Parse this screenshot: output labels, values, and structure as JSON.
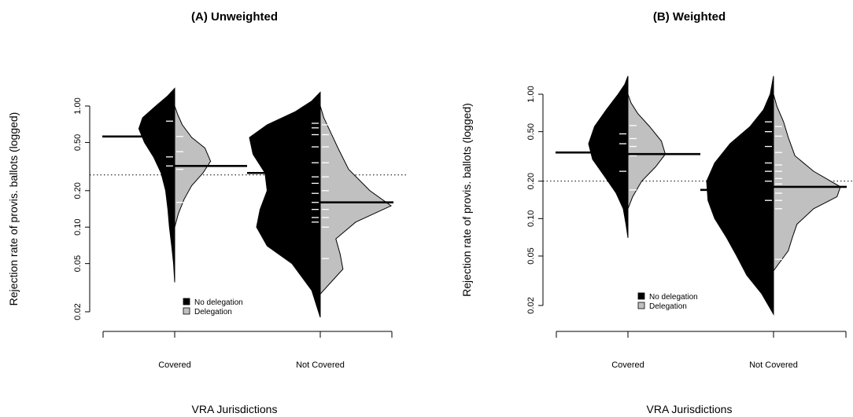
{
  "chart_data": [
    {
      "type": "beanplot",
      "title": "(A) Unweighted",
      "xlabel": "VRA Jurisdictions",
      "ylabel": "Rejection rate of provis. ballots (logged)",
      "y_scale": "log",
      "ylim": [
        0.02,
        1.0
      ],
      "yticks": [
        0.02,
        0.05,
        0.1,
        0.2,
        0.5,
        1.0
      ],
      "ytick_labels": [
        "0.02",
        "0.05",
        "0.10",
        "0.20",
        "0.50",
        "1.00"
      ],
      "categories": [
        "Covered",
        "Not Covered"
      ],
      "overall_line": 0.27,
      "series": [
        {
          "name": "No delegation",
          "color": "#000000",
          "side": "left",
          "groups": [
            {
              "category": "Covered",
              "mean": 0.56,
              "range": [
                0.035,
                1.4
              ],
              "density": [
                [
                  0.035,
                  0.0
                ],
                [
                  0.05,
                  0.03
                ],
                [
                  0.07,
                  0.08
                ],
                [
                  0.1,
                  0.14
                ],
                [
                  0.14,
                  0.18
                ],
                [
                  0.2,
                  0.24
                ],
                [
                  0.28,
                  0.36
                ],
                [
                  0.38,
                  0.56
                ],
                [
                  0.5,
                  0.8
                ],
                [
                  0.65,
                  0.95
                ],
                [
                  0.8,
                  0.85
                ],
                [
                  1.0,
                  0.5
                ],
                [
                  1.2,
                  0.2
                ],
                [
                  1.4,
                  0.0
                ]
              ],
              "obs": [
                0.75,
                0.56,
                0.38,
                0.32
              ]
            },
            {
              "category": "Not Covered",
              "mean": 0.28,
              "range": [
                0.018,
                1.3
              ],
              "density": [
                [
                  0.018,
                  0.0
                ],
                [
                  0.03,
                  0.12
                ],
                [
                  0.05,
                  0.4
                ],
                [
                  0.07,
                  0.75
                ],
                [
                  0.1,
                  0.9
                ],
                [
                  0.14,
                  0.85
                ],
                [
                  0.2,
                  0.75
                ],
                [
                  0.28,
                  0.78
                ],
                [
                  0.4,
                  0.95
                ],
                [
                  0.55,
                  1.0
                ],
                [
                  0.7,
                  0.75
                ],
                [
                  0.9,
                  0.35
                ],
                [
                  1.1,
                  0.12
                ],
                [
                  1.3,
                  0.0
                ]
              ],
              "obs": [
                0.72,
                0.66,
                0.58,
                0.46,
                0.34,
                0.28,
                0.26,
                0.23,
                0.19,
                0.16,
                0.14,
                0.12,
                0.11
              ]
            }
          ]
        },
        {
          "name": "Delegation",
          "color": "#c0c0c0",
          "side": "right",
          "groups": [
            {
              "category": "Covered",
              "mean": 0.32,
              "range": [
                0.1,
                1.0
              ],
              "density": [
                [
                  0.1,
                  0.0
                ],
                [
                  0.13,
                  0.1
                ],
                [
                  0.17,
                  0.25
                ],
                [
                  0.22,
                  0.45
                ],
                [
                  0.28,
                  0.75
                ],
                [
                  0.35,
                  0.95
                ],
                [
                  0.45,
                  0.8
                ],
                [
                  0.55,
                  0.45
                ],
                [
                  0.7,
                  0.2
                ],
                [
                  0.85,
                  0.08
                ],
                [
                  1.0,
                  0.0
                ]
              ],
              "obs": [
                0.56,
                0.42,
                0.3,
                0.16
              ]
            },
            {
              "category": "Not Covered",
              "mean": 0.16,
              "range": [
                0.028,
                1.0
              ],
              "density": [
                [
                  0.028,
                  0.0
                ],
                [
                  0.035,
                  0.15
                ],
                [
                  0.045,
                  0.32
                ],
                [
                  0.06,
                  0.28
                ],
                [
                  0.08,
                  0.22
                ],
                [
                  0.11,
                  0.5
                ],
                [
                  0.15,
                  1.0
                ],
                [
                  0.2,
                  0.7
                ],
                [
                  0.3,
                  0.4
                ],
                [
                  0.45,
                  0.25
                ],
                [
                  0.6,
                  0.15
                ],
                [
                  0.8,
                  0.05
                ],
                [
                  1.0,
                  0.0
                ]
              ],
              "obs": [
                0.7,
                0.58,
                0.46,
                0.34,
                0.26,
                0.2,
                0.16,
                0.14,
                0.12,
                0.1,
                0.055
              ]
            }
          ]
        }
      ],
      "legend": {
        "position": "bottom-center",
        "entries": [
          "No delegation",
          "Delegation"
        ]
      }
    },
    {
      "type": "beanplot",
      "title": "(B) Weighted",
      "xlabel": "VRA Jurisdictions",
      "ylabel": "Rejection rate of provis. ballots (logged)",
      "y_scale": "log",
      "ylim": [
        0.02,
        1.0
      ],
      "yticks": [
        0.02,
        0.05,
        0.1,
        0.2,
        0.5,
        1.0
      ],
      "ytick_labels": [
        "0.02",
        "0.05",
        "0.10",
        "0.20",
        "0.50",
        "1.00"
      ],
      "categories": [
        "Covered",
        "Not Covered"
      ],
      "overall_line": 0.2,
      "series": [
        {
          "name": "No delegation",
          "color": "#000000",
          "side": "left",
          "groups": [
            {
              "category": "Covered",
              "mean": 0.34,
              "range": [
                0.07,
                1.4
              ],
              "density": [
                [
                  0.07,
                  0.0
                ],
                [
                  0.09,
                  0.05
                ],
                [
                  0.12,
                  0.12
                ],
                [
                  0.16,
                  0.3
                ],
                [
                  0.22,
                  0.6
                ],
                [
                  0.3,
                  0.9
                ],
                [
                  0.4,
                  1.0
                ],
                [
                  0.55,
                  0.85
                ],
                [
                  0.75,
                  0.55
                ],
                [
                  1.0,
                  0.25
                ],
                [
                  1.2,
                  0.08
                ],
                [
                  1.4,
                  0.0
                ]
              ],
              "obs": [
                0.48,
                0.4,
                0.24
              ]
            },
            {
              "category": "Not Covered",
              "mean": 0.17,
              "range": [
                0.017,
                1.4
              ],
              "density": [
                [
                  0.017,
                  0.0
                ],
                [
                  0.025,
                  0.18
                ],
                [
                  0.035,
                  0.4
                ],
                [
                  0.05,
                  0.55
                ],
                [
                  0.07,
                  0.7
                ],
                [
                  0.1,
                  0.88
                ],
                [
                  0.14,
                  0.98
                ],
                [
                  0.2,
                  1.0
                ],
                [
                  0.28,
                  0.88
                ],
                [
                  0.4,
                  0.65
                ],
                [
                  0.55,
                  0.35
                ],
                [
                  0.75,
                  0.15
                ],
                [
                  1.0,
                  0.05
                ],
                [
                  1.4,
                  0.0
                ]
              ],
              "obs": [
                0.6,
                0.5,
                0.38,
                0.28,
                0.24,
                0.2,
                0.17,
                0.14
              ]
            }
          ]
        },
        {
          "name": "Delegation",
          "color": "#c0c0c0",
          "side": "right",
          "groups": [
            {
              "category": "Covered",
              "mean": 0.33,
              "range": [
                0.12,
                1.0
              ],
              "density": [
                [
                  0.12,
                  0.0
                ],
                [
                  0.15,
                  0.12
                ],
                [
                  0.2,
                  0.35
                ],
                [
                  0.26,
                  0.7
                ],
                [
                  0.33,
                  0.95
                ],
                [
                  0.42,
                  0.85
                ],
                [
                  0.55,
                  0.55
                ],
                [
                  0.7,
                  0.25
                ],
                [
                  0.85,
                  0.08
                ],
                [
                  1.0,
                  0.0
                ]
              ],
              "obs": [
                0.56,
                0.44,
                0.38,
                0.32,
                0.17
              ]
            },
            {
              "category": "Not Covered",
              "mean": 0.18,
              "range": [
                0.038,
                1.0
              ],
              "density": [
                [
                  0.038,
                  0.0
                ],
                [
                  0.045,
                  0.1
                ],
                [
                  0.055,
                  0.22
                ],
                [
                  0.07,
                  0.28
                ],
                [
                  0.09,
                  0.35
                ],
                [
                  0.12,
                  0.6
                ],
                [
                  0.15,
                  0.95
                ],
                [
                  0.18,
                  1.0
                ],
                [
                  0.24,
                  0.6
                ],
                [
                  0.32,
                  0.32
                ],
                [
                  0.45,
                  0.22
                ],
                [
                  0.6,
                  0.15
                ],
                [
                  0.8,
                  0.05
                ],
                [
                  1.0,
                  0.0
                ]
              ],
              "obs": [
                0.55,
                0.46,
                0.34,
                0.27,
                0.24,
                0.21,
                0.19,
                0.16,
                0.14,
                0.12,
                0.047
              ]
            }
          ]
        }
      ],
      "legend": {
        "position": "bottom-center",
        "entries": [
          "No delegation",
          "Delegation"
        ]
      }
    }
  ]
}
